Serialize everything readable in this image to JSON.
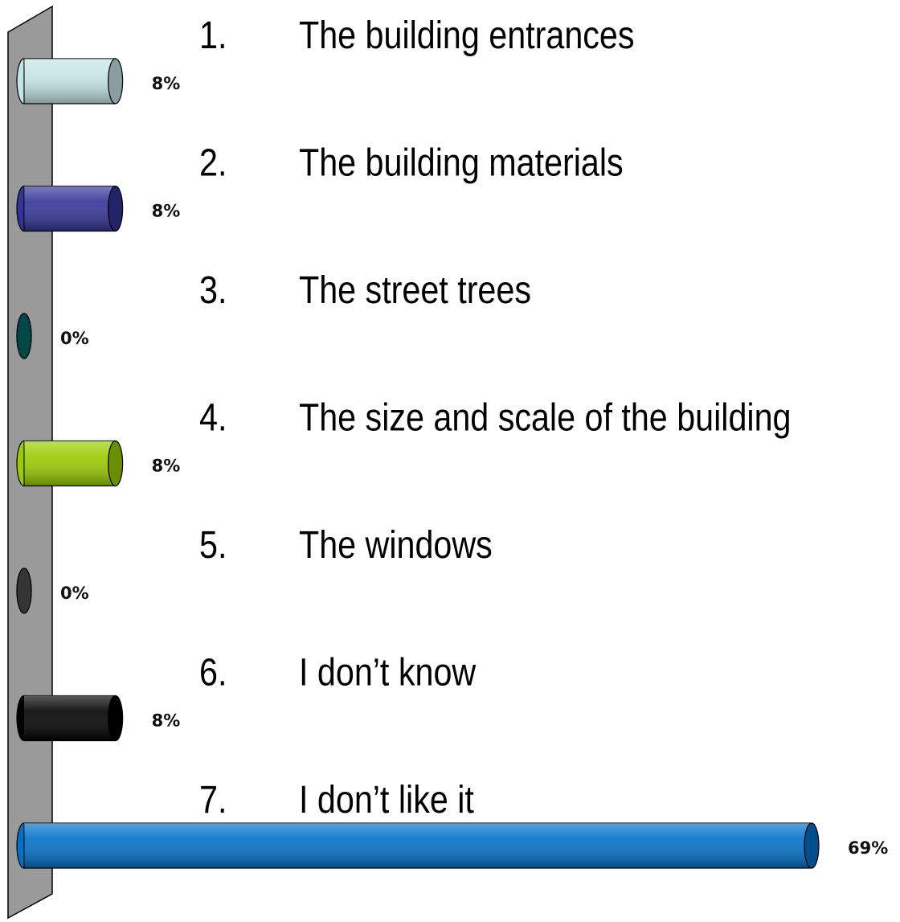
{
  "chart_data": {
    "type": "bar",
    "orientation": "horizontal",
    "category_numbers": [
      "1.",
      "2.",
      "3.",
      "4.",
      "5.",
      "6.",
      "7."
    ],
    "categories": [
      "The building entrances",
      "The building materials",
      "The street trees",
      "The size and scale of the building",
      "The windows",
      "I don’t know",
      "I don’t like it"
    ],
    "values": [
      8,
      8,
      0,
      8,
      0,
      8,
      69
    ],
    "value_labels": [
      "8%",
      "8%",
      "0%",
      "8%",
      "0%",
      "8%",
      "69%"
    ],
    "colors": [
      "#c4e4e4",
      "#333399",
      "#006666",
      "#99cc00",
      "#4d4d4d",
      "#000000",
      "#0070c8"
    ]
  }
}
